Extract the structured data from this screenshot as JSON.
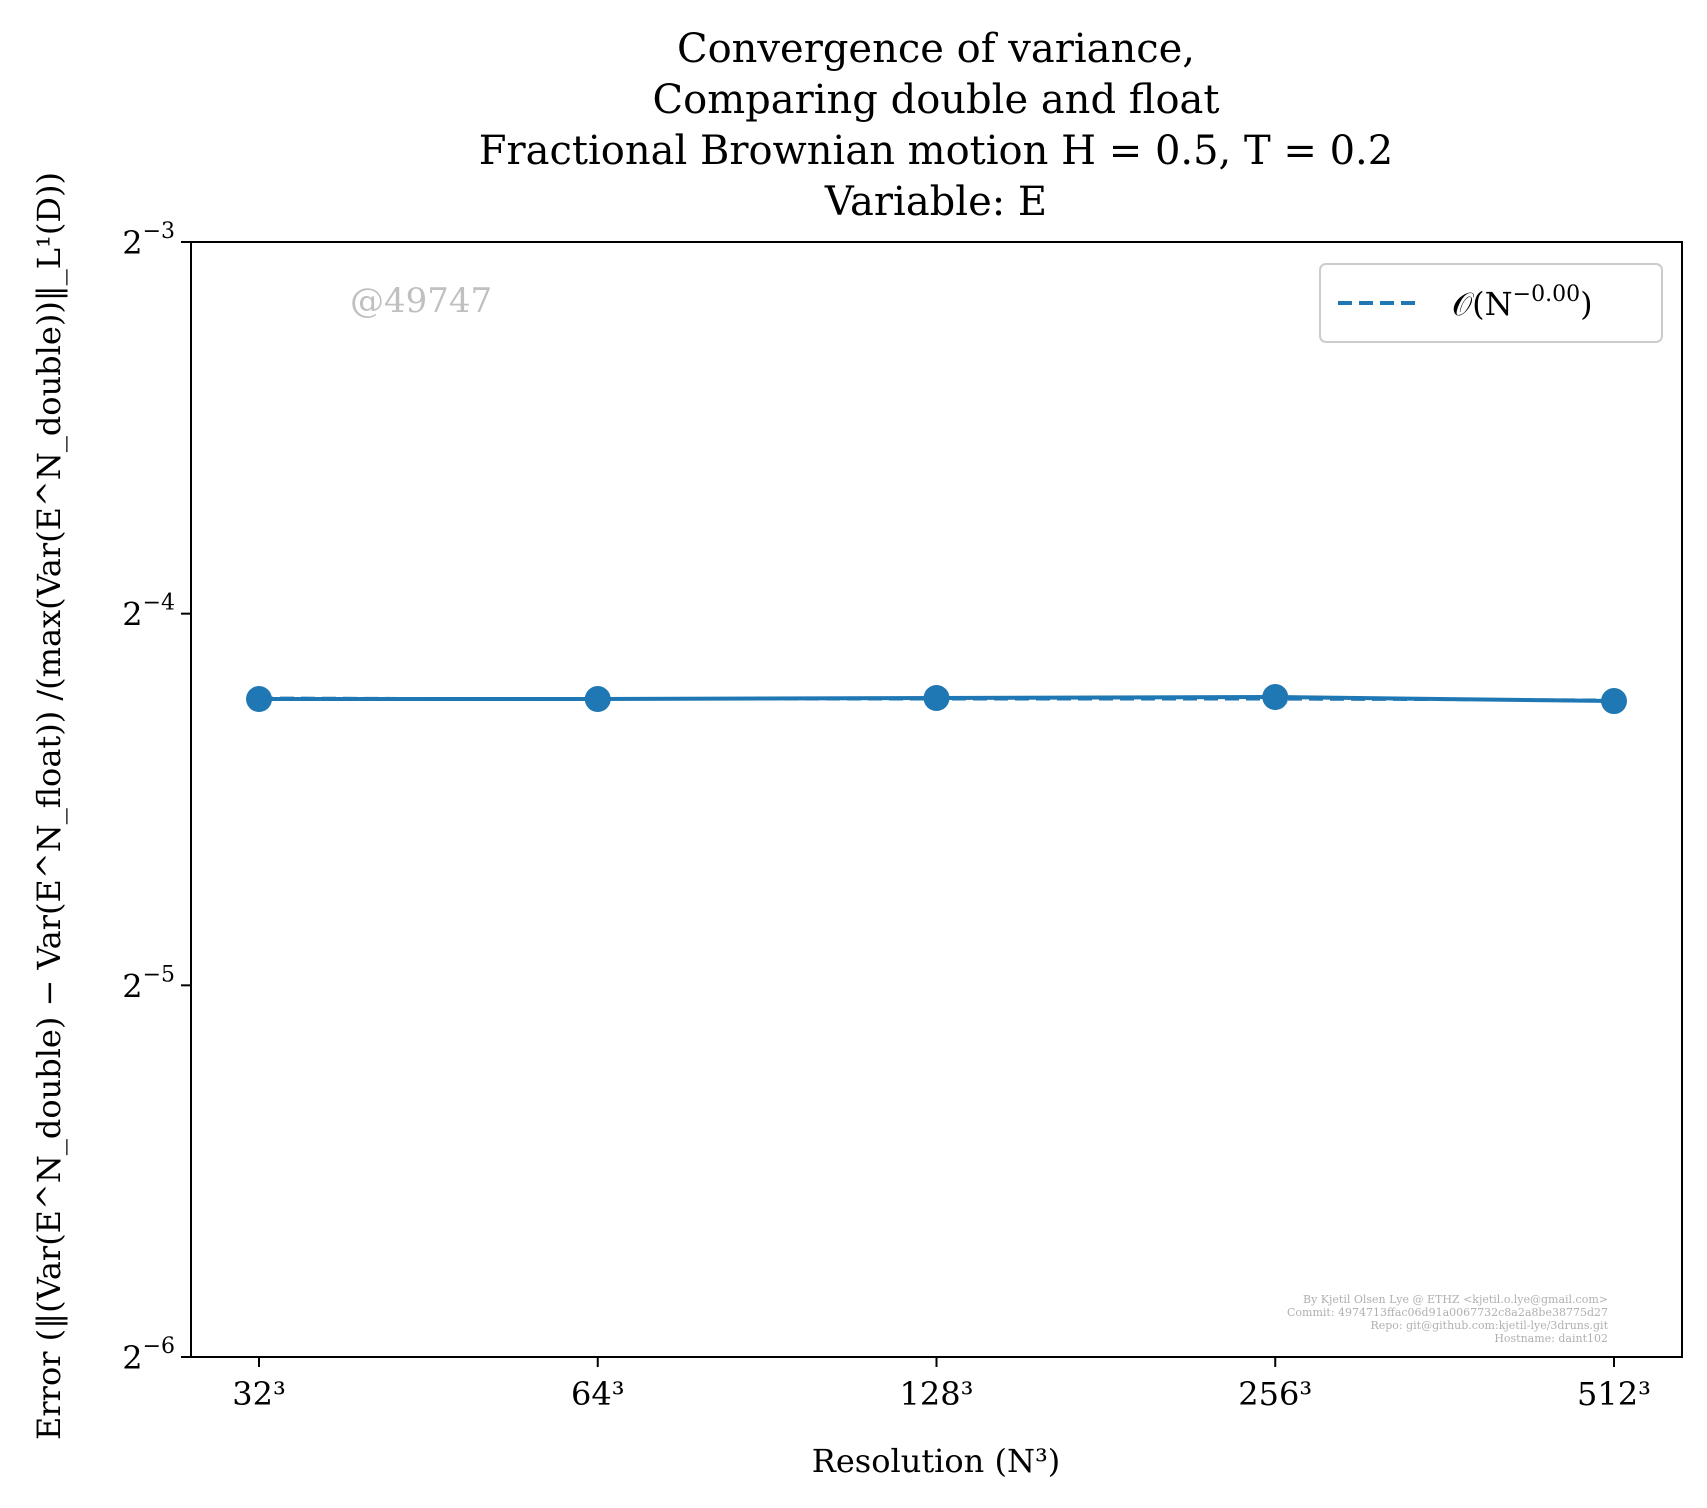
{
  "chart_data": {
    "type": "line",
    "title_lines": [
      "Convergence of variance,",
      "Comparing double and float",
      "Fractional Brownian motion H = 0.5, T = 0.2",
      "Variable: E"
    ],
    "xlabel": "Resolution (N³)",
    "ylabel": "Error (‖(Var(E^N_double) − Var(E^N_float)) /(max(Var(E^N_double))‖_L¹(D))",
    "x_scale": "log2",
    "y_scale": "log2",
    "x": [
      32,
      64,
      128,
      256,
      512
    ],
    "x_tick_labels": [
      "32³",
      "64³",
      "128³",
      "256³",
      "512³"
    ],
    "y_ticks": [
      {
        "value": 0.125,
        "base": "2",
        "exp": "−3"
      },
      {
        "value": 0.0625,
        "base": "2",
        "exp": "−4"
      },
      {
        "value": 0.03125,
        "base": "2",
        "exp": "−5"
      },
      {
        "value": 0.015625,
        "base": "2",
        "exp": "−6"
      }
    ],
    "ylim": [
      0.015625,
      0.125
    ],
    "series": [
      {
        "style": "solid",
        "marker": "circle",
        "color": "#1f77b4",
        "values": [
          0.0533,
          0.0533,
          0.0534,
          0.0535,
          0.0531
        ]
      },
      {
        "name": "𝒪(N^−0.00)",
        "style": "dashed",
        "color": "#1f77b4",
        "values": [
          0.0534,
          0.0533,
          0.0533,
          0.0533,
          0.0532
        ]
      }
    ],
    "legend": {
      "position": "top-right",
      "entry": "𝒪(N",
      "entry_exp": "−0.00",
      "entry_close": ")"
    },
    "grid": false
  },
  "watermark": "@49747",
  "credits": [
    "By Kjetil Olsen Lye @ ETHZ <kjetil.o.lye@gmail.com>",
    "Commit: 4974713ffac06d91a0067732c8a2a8be38775d27",
    "Repo: git@github.com:kjetil-lye/3druns.git",
    "Hostname: daint102"
  ],
  "colors": {
    "series": "#1f77b4",
    "axes": "#000000"
  }
}
